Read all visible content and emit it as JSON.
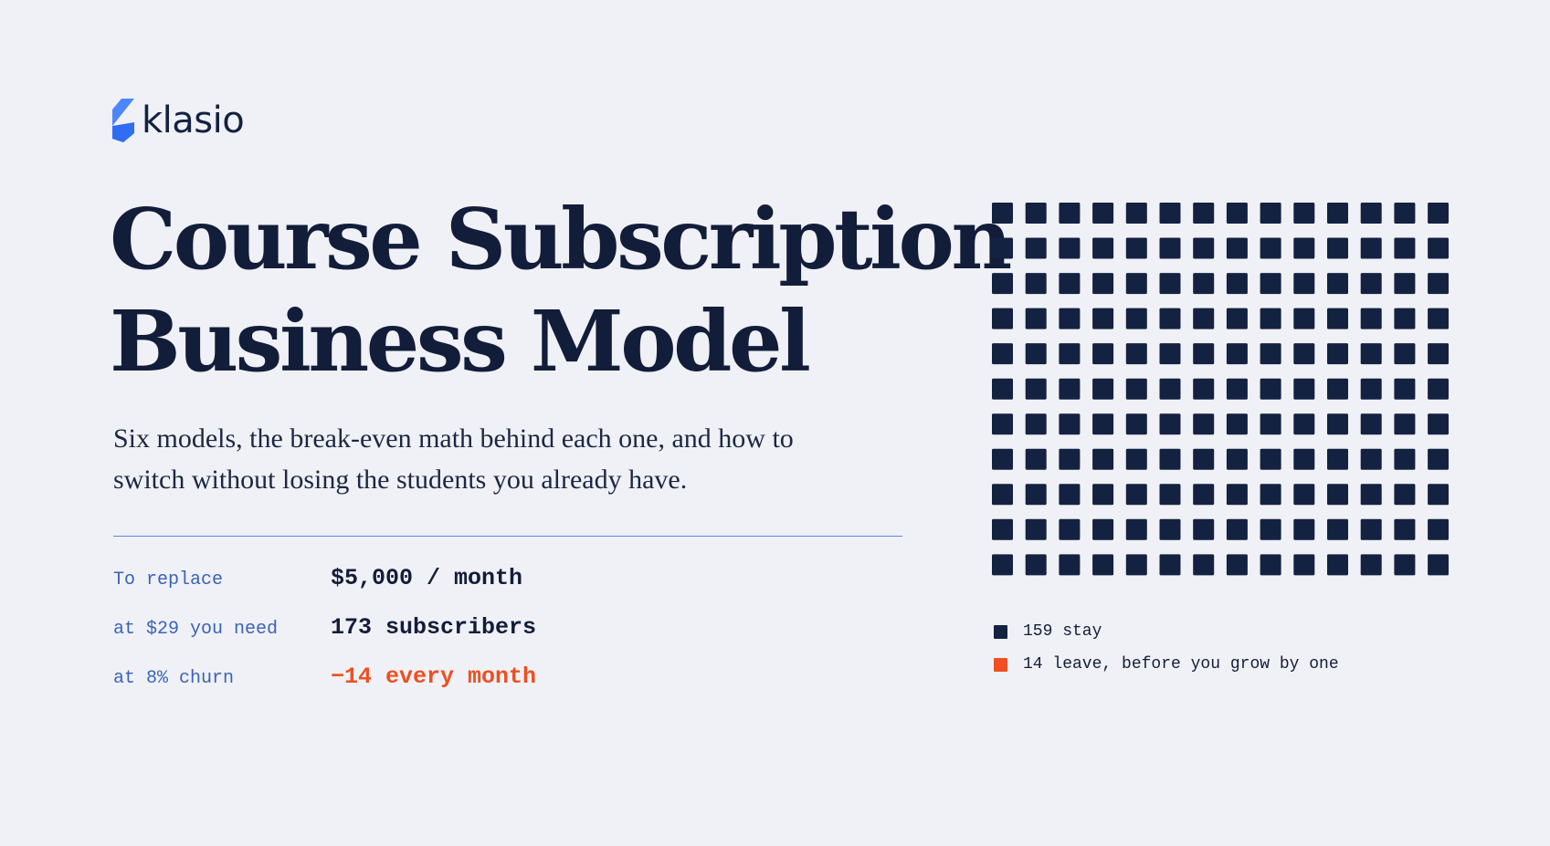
{
  "brand": {
    "name": "klasio",
    "icon": "klasio-logo-icon",
    "color": "#2f6df5"
  },
  "colors": {
    "text": "#121d3a",
    "accent": "#ef4f22",
    "label": "#3a63b8",
    "background": "#f0f1f6"
  },
  "hero": {
    "title_line1": "Course Subscription",
    "title_line2": "Business Model",
    "subtitle_line1": "Six models, the break-even math behind each one, and how to",
    "subtitle_line2": "switch without losing the students you already have."
  },
  "stats": [
    {
      "label": "To replace",
      "value": "$5,000 / month",
      "accent": false
    },
    {
      "label": "at $29 you need",
      "value": "173 subscribers",
      "accent": false
    },
    {
      "label": "at 8% churn",
      "value": "−14 every month",
      "accent": true
    }
  ],
  "chart_data": {
    "type": "waffle",
    "columns": 14,
    "series": [
      {
        "name": "159 stay",
        "value": 159,
        "color": "#142241"
      },
      {
        "name": "14 leave, before you grow by one",
        "value": 14,
        "color": "#ef4f22"
      }
    ]
  }
}
